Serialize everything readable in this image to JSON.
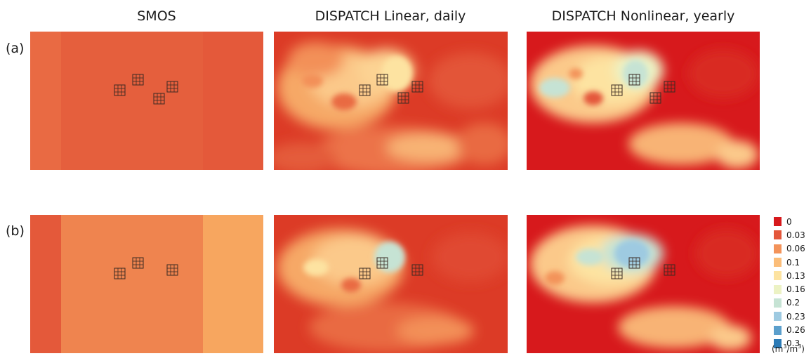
{
  "columns": [
    "SMOS",
    "DISPATCH Linear, daily",
    "DISPATCH Nonlinear, yearly"
  ],
  "rows": [
    "(a)",
    "(b)"
  ],
  "legend": {
    "entries": [
      {
        "label": "0",
        "color": "#d7191c"
      },
      {
        "label": "0.03",
        "color": "#e4573b"
      },
      {
        "label": "0.06",
        "color": "#f3935a"
      },
      {
        "label": "0.1",
        "color": "#fbbd79"
      },
      {
        "label": "0.13",
        "color": "#fde3a1"
      },
      {
        "label": "0.16",
        "color": "#ecf2c4"
      },
      {
        "label": "0.2",
        "color": "#c6e3d4"
      },
      {
        "label": "0.23",
        "color": "#9ecae1"
      },
      {
        "label": "0.26",
        "color": "#5b9fcc"
      },
      {
        "label": "0.3",
        "color": "#2c7bb6"
      }
    ],
    "unit_base": "(m",
    "unit_exp1": "3",
    "unit_mid": "/m",
    "unit_exp2": "3",
    "unit_end": ")"
  },
  "smos_strips": {
    "a": [
      0.045,
      0.038,
      0.037
    ],
    "b": [
      0.037,
      0.058,
      0.075
    ]
  },
  "site_markers": {
    "a": 4,
    "b": 3
  }
}
